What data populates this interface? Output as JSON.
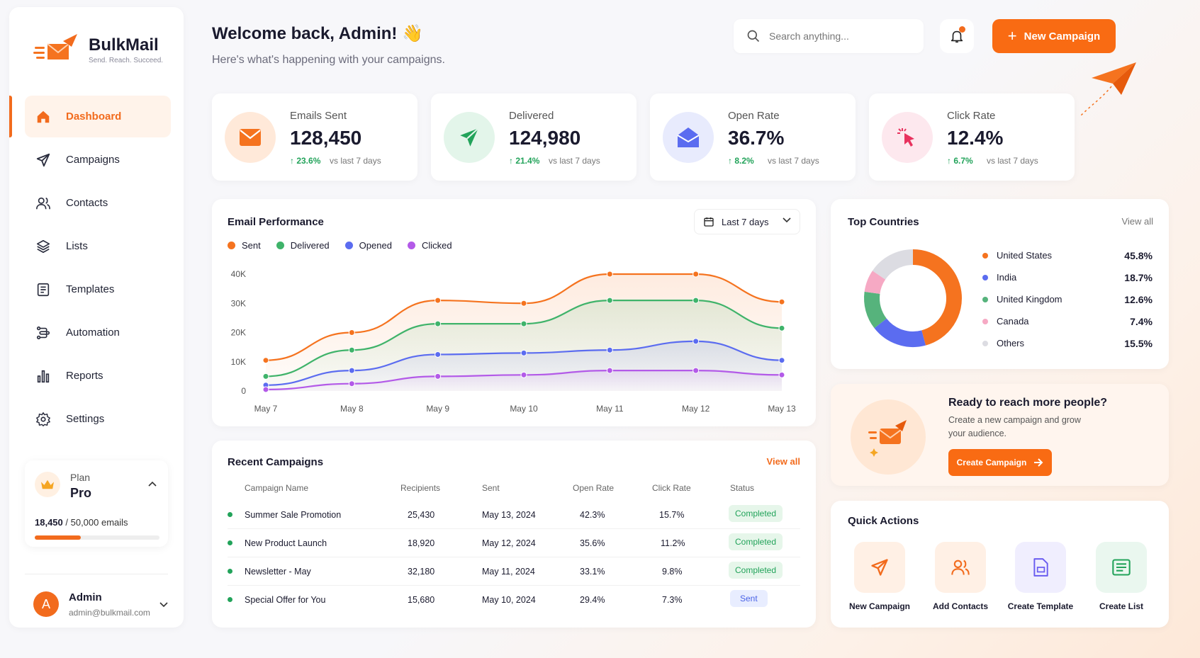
{
  "brand": {
    "name": "BulkMail",
    "tagline": "Send. Reach. Succeed."
  },
  "nav": [
    {
      "label": "Dashboard",
      "icon": "home-icon",
      "active": true
    },
    {
      "label": "Campaigns",
      "icon": "send-icon"
    },
    {
      "label": "Contacts",
      "icon": "users-icon"
    },
    {
      "label": "Lists",
      "icon": "layers-icon"
    },
    {
      "label": "Templates",
      "icon": "template-icon"
    },
    {
      "label": "Automation",
      "icon": "automation-icon"
    },
    {
      "label": "Reports",
      "icon": "bar-chart-icon"
    },
    {
      "label": "Settings",
      "icon": "gear-icon"
    }
  ],
  "plan": {
    "label": "Plan",
    "name": "Pro",
    "used": "18,450",
    "total": "/ 50,000 emails",
    "usage_fraction": 0.369
  },
  "user": {
    "initial": "A",
    "name": "Admin",
    "email": "admin@bulkmail.com"
  },
  "header": {
    "title": "Welcome back, Admin! 👋",
    "subtitle": "Here's what's happening with your campaigns.",
    "search_placeholder": "Search anything...",
    "new_campaign": "New Campaign"
  },
  "stats": [
    {
      "label": "Emails Sent",
      "value": "128,450",
      "change": "↑ 23.6%",
      "vs": "vs last 7 days",
      "color": "#f26b1d"
    },
    {
      "label": "Delivered",
      "value": "124,980",
      "change": "↑ 21.4%",
      "vs": "vs last 7 days",
      "color": "#22a35a"
    },
    {
      "label": "Open Rate",
      "value": "36.7%",
      "change": "↑ 8.2%",
      "vs": "vs last 7 days",
      "color": "#5b6cf0"
    },
    {
      "label": "Click Rate",
      "value": "12.4%",
      "change": "↑ 6.7%",
      "vs": "vs last 7 days",
      "color": "#e8325e"
    }
  ],
  "performance": {
    "title": "Email Performance",
    "range": "Last 7 days"
  },
  "chart_data": {
    "type": "line",
    "categories": [
      "May 7",
      "May 8",
      "May 9",
      "May 10",
      "May 11",
      "May 12",
      "May 13"
    ],
    "series": [
      {
        "name": "Sent",
        "color": "#f5731f",
        "values": [
          10500,
          20000,
          31000,
          30000,
          40000,
          40000,
          30500
        ]
      },
      {
        "name": "Delivered",
        "color": "#3fb36a",
        "values": [
          5000,
          14000,
          23000,
          23000,
          31000,
          31000,
          21500
        ]
      },
      {
        "name": "Opened",
        "color": "#5b6cf0",
        "values": [
          2000,
          7000,
          12500,
          13000,
          14000,
          17000,
          10500
        ]
      },
      {
        "name": "Clicked",
        "color": "#b35ae8",
        "values": [
          500,
          2500,
          5000,
          5500,
          7000,
          7000,
          5500
        ]
      }
    ],
    "yticks": [
      "0",
      "10K",
      "20K",
      "30K",
      "40K"
    ],
    "ylim": [
      0,
      40000
    ]
  },
  "recent": {
    "title": "Recent Campaigns",
    "view_all": "View all",
    "columns": [
      "Campaign Name",
      "Recipients",
      "Sent",
      "Open Rate",
      "Click Rate",
      "Status"
    ],
    "rows": [
      {
        "name": "Summer Sale Promotion",
        "recipients": "25,430",
        "sent": "May 13, 2024",
        "open": "42.3%",
        "click": "15.7%",
        "status": "Completed"
      },
      {
        "name": "New Product Launch",
        "recipients": "18,920",
        "sent": "May 12, 2024",
        "open": "35.6%",
        "click": "11.2%",
        "status": "Completed"
      },
      {
        "name": "Newsletter - May",
        "recipients": "32,180",
        "sent": "May 11, 2024",
        "open": "33.1%",
        "click": "9.8%",
        "status": "Completed"
      },
      {
        "name": "Special Offer for You",
        "recipients": "15,680",
        "sent": "May 10, 2024",
        "open": "29.4%",
        "click": "7.3%",
        "status": "Sent"
      }
    ]
  },
  "countries": {
    "title": "Top Countries",
    "view_all": "View all",
    "items": [
      {
        "name": "United States",
        "pct": "45.8%",
        "value": 45.8,
        "color": "#f5731f"
      },
      {
        "name": "India",
        "pct": "18.7%",
        "value": 18.7,
        "color": "#5b6cf0"
      },
      {
        "name": "United Kingdom",
        "pct": "12.6%",
        "value": 12.6,
        "color": "#56b37c"
      },
      {
        "name": "Canada",
        "pct": "7.4%",
        "value": 7.4,
        "color": "#f6a9c4"
      },
      {
        "name": "Others",
        "pct": "15.5%",
        "value": 15.5,
        "color": "#dcdce2"
      }
    ]
  },
  "promo": {
    "title": "Ready to reach more people?",
    "subtitle": "Create a new campaign and grow your audience.",
    "button": "Create Campaign"
  },
  "quick": {
    "title": "Quick Actions",
    "items": [
      {
        "label": "New Campaign",
        "icon": "send-icon",
        "bg": "#fff0e5",
        "color": "#f26b1d"
      },
      {
        "label": "Add Contacts",
        "icon": "users-icon",
        "bg": "#fff0e5",
        "color": "#f26b1d"
      },
      {
        "label": "Create Template",
        "icon": "template-icon",
        "bg": "#f0eefe",
        "color": "#6a5cf0"
      },
      {
        "label": "Create List",
        "icon": "list-icon",
        "bg": "#eaf7ef",
        "color": "#22a35a"
      }
    ]
  }
}
